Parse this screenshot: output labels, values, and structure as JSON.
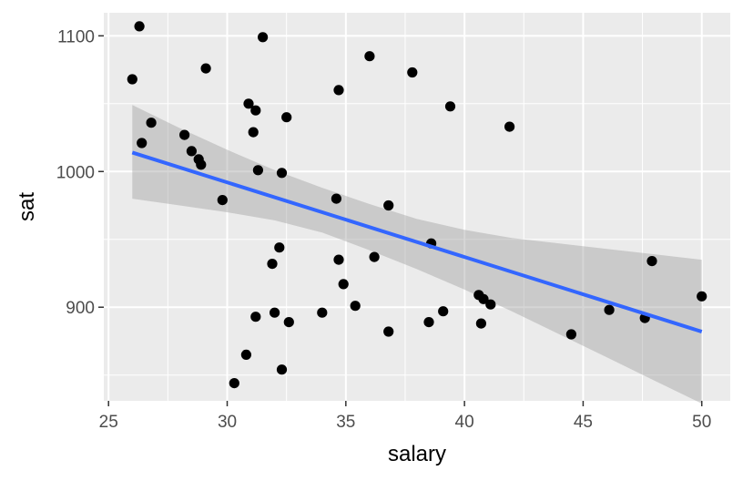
{
  "chart_data": {
    "type": "scatter",
    "title": "",
    "xlabel": "salary",
    "ylabel": "sat",
    "xlim": [
      24.8,
      51.2
    ],
    "ylim": [
      831,
      1117
    ],
    "x_ticks": [
      25,
      30,
      35,
      40,
      45,
      50
    ],
    "y_ticks": [
      900,
      1000,
      1100
    ],
    "grid": true,
    "points": [
      {
        "x": 26.0,
        "y": 1068
      },
      {
        "x": 26.3,
        "y": 1107
      },
      {
        "x": 26.4,
        "y": 1021
      },
      {
        "x": 26.8,
        "y": 1036
      },
      {
        "x": 28.2,
        "y": 1027
      },
      {
        "x": 28.5,
        "y": 1015
      },
      {
        "x": 28.8,
        "y": 1009
      },
      {
        "x": 28.9,
        "y": 1005
      },
      {
        "x": 29.1,
        "y": 1076
      },
      {
        "x": 29.8,
        "y": 979
      },
      {
        "x": 30.3,
        "y": 844
      },
      {
        "x": 30.8,
        "y": 865
      },
      {
        "x": 30.9,
        "y": 1050
      },
      {
        "x": 31.1,
        "y": 1029
      },
      {
        "x": 31.2,
        "y": 1045
      },
      {
        "x": 31.2,
        "y": 893
      },
      {
        "x": 31.3,
        "y": 1001
      },
      {
        "x": 31.5,
        "y": 1099
      },
      {
        "x": 31.9,
        "y": 932
      },
      {
        "x": 32.0,
        "y": 896
      },
      {
        "x": 32.2,
        "y": 944
      },
      {
        "x": 32.3,
        "y": 999
      },
      {
        "x": 32.3,
        "y": 854
      },
      {
        "x": 32.5,
        "y": 1040
      },
      {
        "x": 32.6,
        "y": 889
      },
      {
        "x": 34.0,
        "y": 896
      },
      {
        "x": 34.6,
        "y": 980
      },
      {
        "x": 34.7,
        "y": 1060
      },
      {
        "x": 34.7,
        "y": 935
      },
      {
        "x": 34.9,
        "y": 917
      },
      {
        "x": 35.4,
        "y": 901
      },
      {
        "x": 36.0,
        "y": 1085
      },
      {
        "x": 36.2,
        "y": 937
      },
      {
        "x": 36.8,
        "y": 975
      },
      {
        "x": 36.8,
        "y": 882
      },
      {
        "x": 37.8,
        "y": 1073
      },
      {
        "x": 38.5,
        "y": 889
      },
      {
        "x": 38.6,
        "y": 947
      },
      {
        "x": 39.1,
        "y": 897
      },
      {
        "x": 39.4,
        "y": 1048
      },
      {
        "x": 40.6,
        "y": 909
      },
      {
        "x": 40.7,
        "y": 888
      },
      {
        "x": 40.8,
        "y": 906
      },
      {
        "x": 41.1,
        "y": 902
      },
      {
        "x": 41.9,
        "y": 1033
      },
      {
        "x": 44.5,
        "y": 880
      },
      {
        "x": 46.1,
        "y": 898
      },
      {
        "x": 47.6,
        "y": 892
      },
      {
        "x": 47.9,
        "y": 934
      },
      {
        "x": 50.0,
        "y": 908
      }
    ],
    "fit_line": {
      "x": [
        26.0,
        50.0
      ],
      "y": [
        1014,
        882
      ],
      "color": "#3366ff"
    },
    "confidence_band": {
      "x": [
        26.0,
        28,
        30,
        32,
        34,
        36,
        38,
        40,
        42,
        44,
        46,
        48,
        50.0
      ],
      "upper": [
        1049,
        1032,
        1016,
        1001,
        988,
        976,
        965,
        957,
        951,
        947,
        943,
        939,
        935
      ],
      "lower": [
        980,
        975,
        970,
        964,
        955,
        942,
        928,
        913,
        897,
        880,
        863,
        846,
        829
      ]
    },
    "colors": {
      "panel": "#ebebeb",
      "grid": "#ffffff",
      "point": "#000000",
      "band": "#999999"
    }
  }
}
